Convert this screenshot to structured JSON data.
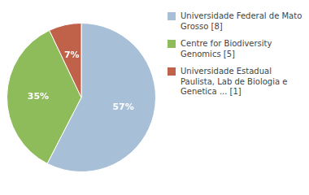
{
  "chart_data": {
    "type": "pie",
    "categories": [
      "Universidade Federal de Mato\nGrosso [8]",
      "Centre for Biodiversity\nGenomics [5]",
      "Universidade Estadual\nPaulista, Lab de Biologia e\nGenetica ... [1]"
    ],
    "values": [
      57,
      35,
      7
    ],
    "value_labels": [
      "57%",
      "35%",
      "7%"
    ],
    "colors": [
      "#a8bfd8",
      "#8fbc5a",
      "#c0614a"
    ],
    "data_labels": true,
    "legend": "right"
  }
}
